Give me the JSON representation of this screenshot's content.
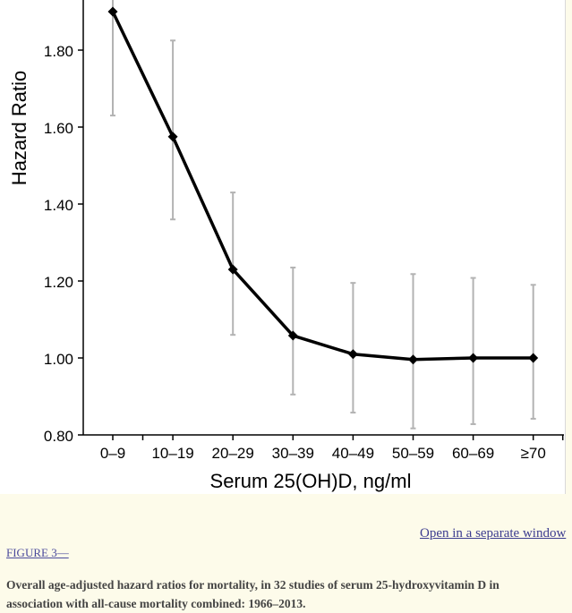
{
  "chart_data": {
    "type": "line",
    "title": "",
    "xlabel": "Serum 25(OH)D, ng/ml",
    "ylabel": "Hazard Ratio",
    "categories": [
      "0–9",
      "10–19",
      "20–29",
      "30–39",
      "40–49",
      "50–59",
      "60–69",
      "≥70"
    ],
    "values": [
      1.9,
      1.575,
      1.23,
      1.058,
      1.01,
      0.996,
      1.0,
      1.0
    ],
    "ci_lower": [
      1.63,
      1.36,
      1.06,
      0.905,
      0.858,
      0.817,
      0.828,
      0.842
    ],
    "ci_upper": [
      1.95,
      1.825,
      1.43,
      1.235,
      1.195,
      1.218,
      1.208,
      1.19
    ],
    "ylim": [
      0.8,
      1.92
    ],
    "yticks": [
      0.8,
      1.0,
      1.2,
      1.4,
      1.6,
      1.8
    ],
    "ytick_labels": [
      "0.80",
      "1.00",
      "1.20",
      "1.40",
      "1.60",
      "1.80"
    ],
    "colors": {
      "line": "#000000",
      "error_bar": "#b3b3b3",
      "axis": "#000000"
    }
  },
  "link": {
    "open_window": "Open in a separate window"
  },
  "figure": {
    "label": "FIGURE 3—",
    "caption": "Overall age-adjusted hazard ratios for mortality, in 32 studies of serum 25-hydroxyvitamin D in association with all-cause mortality combined: 1966–2013."
  }
}
